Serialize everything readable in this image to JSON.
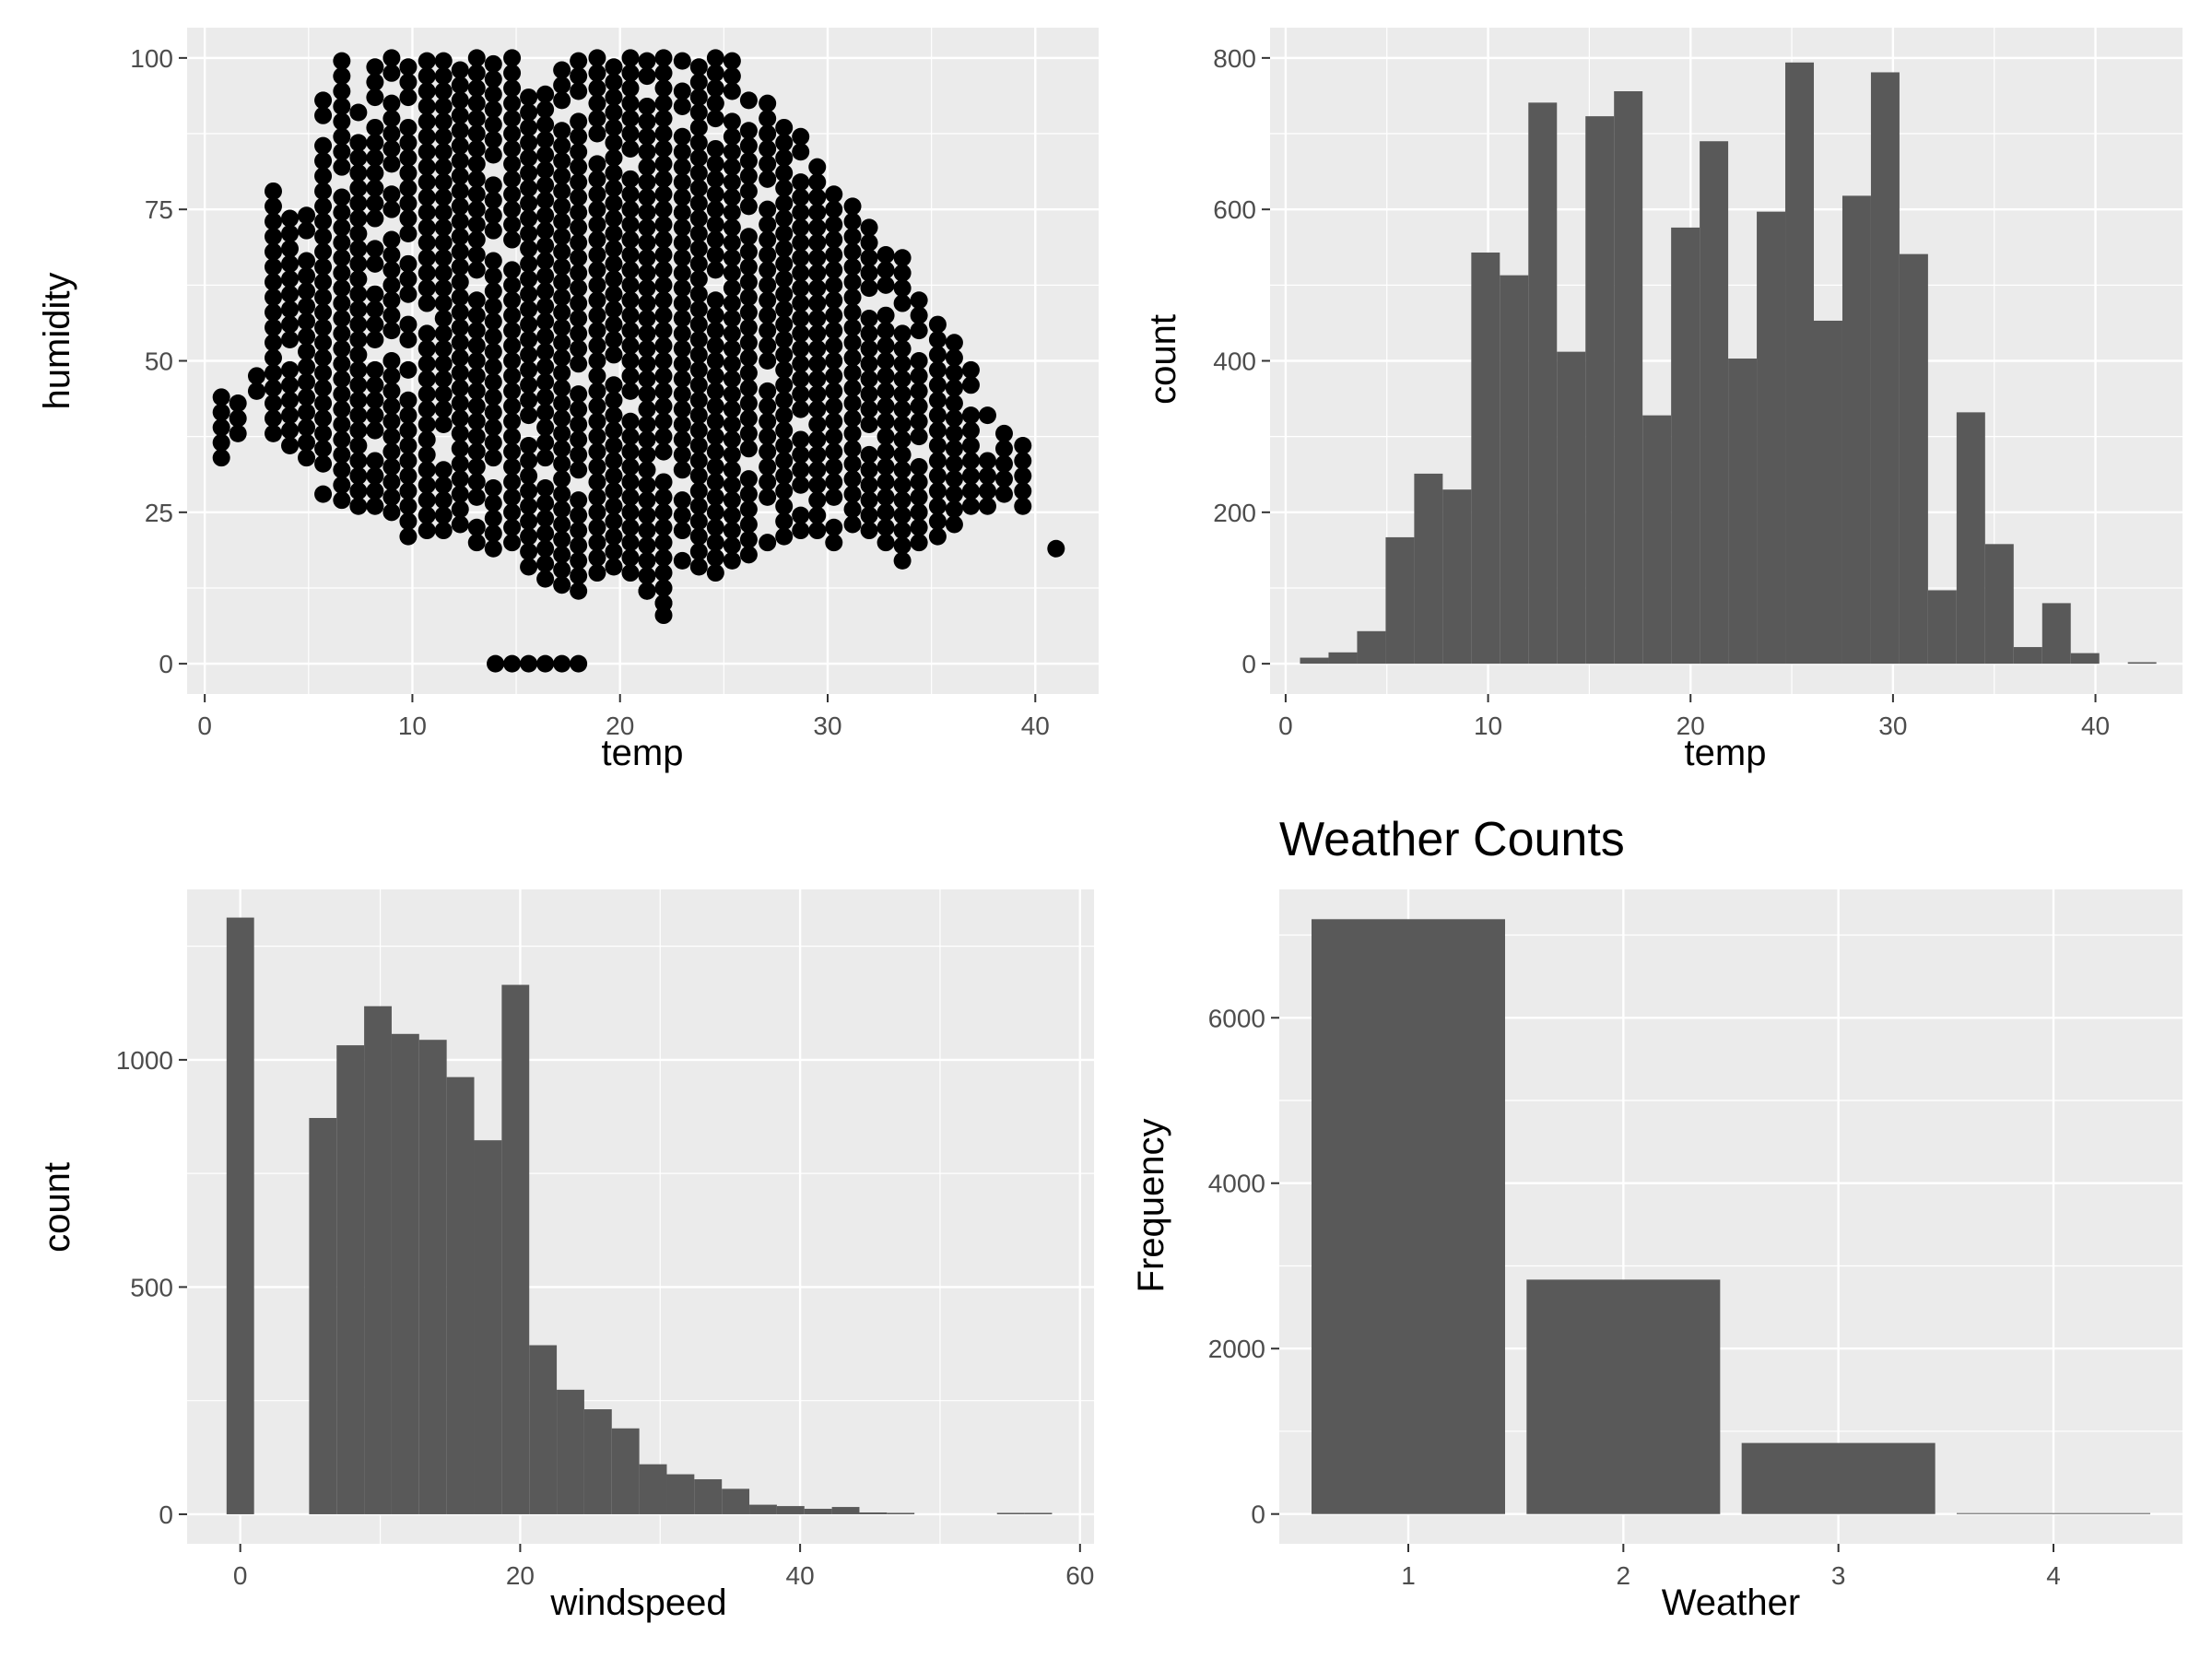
{
  "colors": {
    "panel_bg": "#ebebeb",
    "bar_fill": "#595959",
    "point_fill": "#000000",
    "grid": "#ffffff",
    "tick_text": "#4d4d4d"
  },
  "chart_data": [
    {
      "id": "scatter",
      "type": "scatter",
      "title": "",
      "xlabel": "temp",
      "ylabel": "humidity",
      "xlim": [
        -0.85,
        43.05
      ],
      "ylim": [
        -5,
        105
      ],
      "xticks": [
        0,
        10,
        20,
        30,
        40
      ],
      "yticks": [
        0,
        25,
        50,
        75,
        100
      ],
      "grid": true,
      "humidity_range_by_temp": [
        {
          "temp": 0.8,
          "min": 34,
          "max": 44
        },
        {
          "temp": 1.6,
          "min": 38,
          "max": 45
        },
        {
          "temp": 2.5,
          "min": 45,
          "max": 49
        },
        {
          "temp": 3.3,
          "min": 38,
          "max": 79
        },
        {
          "temp": 4.1,
          "min": 36,
          "max": 75
        },
        {
          "temp": 4.9,
          "min": 34,
          "max": 76
        },
        {
          "temp": 5.7,
          "min": 28,
          "max": 93
        },
        {
          "temp": 6.6,
          "min": 27,
          "max": 100
        },
        {
          "temp": 7.4,
          "min": 26,
          "max": 93
        },
        {
          "temp": 8.2,
          "min": 26,
          "max": 100
        },
        {
          "temp": 9.0,
          "min": 25,
          "max": 100
        },
        {
          "temp": 9.8,
          "min": 21,
          "max": 100
        },
        {
          "temp": 10.7,
          "min": 22,
          "max": 100
        },
        {
          "temp": 11.5,
          "min": 22,
          "max": 100
        },
        {
          "temp": 12.3,
          "min": 23,
          "max": 100
        },
        {
          "temp": 13.1,
          "min": 20,
          "max": 100
        },
        {
          "temp": 13.9,
          "min": 19,
          "max": 100
        },
        {
          "temp": 14.8,
          "min": 20,
          "max": 100
        },
        {
          "temp": 15.6,
          "min": 16,
          "max": 94
        },
        {
          "temp": 16.4,
          "min": 14,
          "max": 94
        },
        {
          "temp": 17.2,
          "min": 13,
          "max": 100
        },
        {
          "temp": 18.0,
          "min": 12,
          "max": 100
        },
        {
          "temp": 18.9,
          "min": 15,
          "max": 100
        },
        {
          "temp": 19.7,
          "min": 16,
          "max": 100
        },
        {
          "temp": 20.5,
          "min": 15,
          "max": 100
        },
        {
          "temp": 21.3,
          "min": 12,
          "max": 100
        },
        {
          "temp": 22.1,
          "min": 10,
          "max": 100
        },
        {
          "temp": 23.0,
          "min": 17,
          "max": 100
        },
        {
          "temp": 23.8,
          "min": 16,
          "max": 100
        },
        {
          "temp": 24.6,
          "min": 15,
          "max": 100
        },
        {
          "temp": 25.4,
          "min": 17,
          "max": 100
        },
        {
          "temp": 26.2,
          "min": 18,
          "max": 94
        },
        {
          "temp": 27.1,
          "min": 20,
          "max": 94
        },
        {
          "temp": 27.9,
          "min": 21,
          "max": 89
        },
        {
          "temp": 28.7,
          "min": 22,
          "max": 89
        },
        {
          "temp": 29.5,
          "min": 22,
          "max": 84
        },
        {
          "temp": 30.3,
          "min": 20,
          "max": 79
        },
        {
          "temp": 31.2,
          "min": 23,
          "max": 76
        },
        {
          "temp": 32.0,
          "min": 22,
          "max": 74
        },
        {
          "temp": 32.8,
          "min": 20,
          "max": 69
        },
        {
          "temp": 33.6,
          "min": 17,
          "max": 67
        },
        {
          "temp": 34.4,
          "min": 20,
          "max": 62
        },
        {
          "temp": 35.3,
          "min": 21,
          "max": 58
        },
        {
          "temp": 36.1,
          "min": 23,
          "max": 54
        },
        {
          "temp": 36.9,
          "min": 26,
          "max": 49
        },
        {
          "temp": 37.7,
          "min": 26,
          "max": 43
        },
        {
          "temp": 38.5,
          "min": 28,
          "max": 38
        },
        {
          "temp": 39.4,
          "min": 26,
          "max": 36
        },
        {
          "temp": 41.0,
          "min": 19,
          "max": 19
        }
      ],
      "extra_points": [
        {
          "x": 14.0,
          "y": 0
        },
        {
          "x": 14.8,
          "y": 0
        },
        {
          "x": 15.6,
          "y": 0
        },
        {
          "x": 16.4,
          "y": 0
        },
        {
          "x": 17.2,
          "y": 0
        },
        {
          "x": 18.0,
          "y": 0
        },
        {
          "x": 22.1,
          "y": 8
        },
        {
          "x": 22.1,
          "y": 10
        },
        {
          "x": 21.3,
          "y": 12
        }
      ]
    },
    {
      "id": "hist-temp",
      "type": "bar",
      "title": "",
      "xlabel": "temp",
      "ylabel": "count",
      "xlim": [
        -0.77,
        44.3
      ],
      "ylim": [
        -40,
        840
      ],
      "xticks": [
        0,
        10,
        20,
        30,
        40
      ],
      "yticks": [
        0,
        200,
        400,
        600,
        800
      ],
      "grid": true,
      "bin_width": 1.41,
      "bin_start": 0.71,
      "values": [
        8,
        15,
        43,
        167,
        251,
        230,
        543,
        513,
        741,
        412,
        723,
        756,
        328,
        576,
        690,
        403,
        597,
        794,
        453,
        618,
        781,
        541,
        97,
        332,
        158,
        22,
        80,
        14,
        0,
        2
      ]
    },
    {
      "id": "hist-windspeed",
      "type": "bar",
      "title": "",
      "xlabel": "windspeed",
      "ylabel": "count",
      "xlim": [
        -3.8,
        61.0
      ],
      "ylim": [
        -65,
        1375
      ],
      "xticks": [
        0,
        20,
        40,
        60
      ],
      "yticks": [
        0,
        500,
        1000
      ],
      "grid": true,
      "bin_width": 1.966,
      "bin_start": -0.98,
      "values": [
        1313,
        0,
        0,
        872,
        1032,
        1118,
        1057,
        1044,
        962,
        823,
        1165,
        372,
        274,
        231,
        189,
        110,
        88,
        77,
        56,
        21,
        18,
        12,
        16,
        4,
        3,
        0,
        0,
        0,
        2,
        1
      ]
    },
    {
      "id": "weather-counts",
      "type": "bar",
      "title": "Weather Counts",
      "xlabel": "Weather",
      "ylabel": "Frequency",
      "categories": [
        "1",
        "2",
        "3",
        "4"
      ],
      "values": [
        7192,
        2834,
        859,
        1
      ],
      "xlim": [
        0.4,
        4.6
      ],
      "ylim": [
        -360,
        7552
      ],
      "yticks": [
        0,
        2000,
        4000,
        6000
      ],
      "grid": true
    }
  ]
}
